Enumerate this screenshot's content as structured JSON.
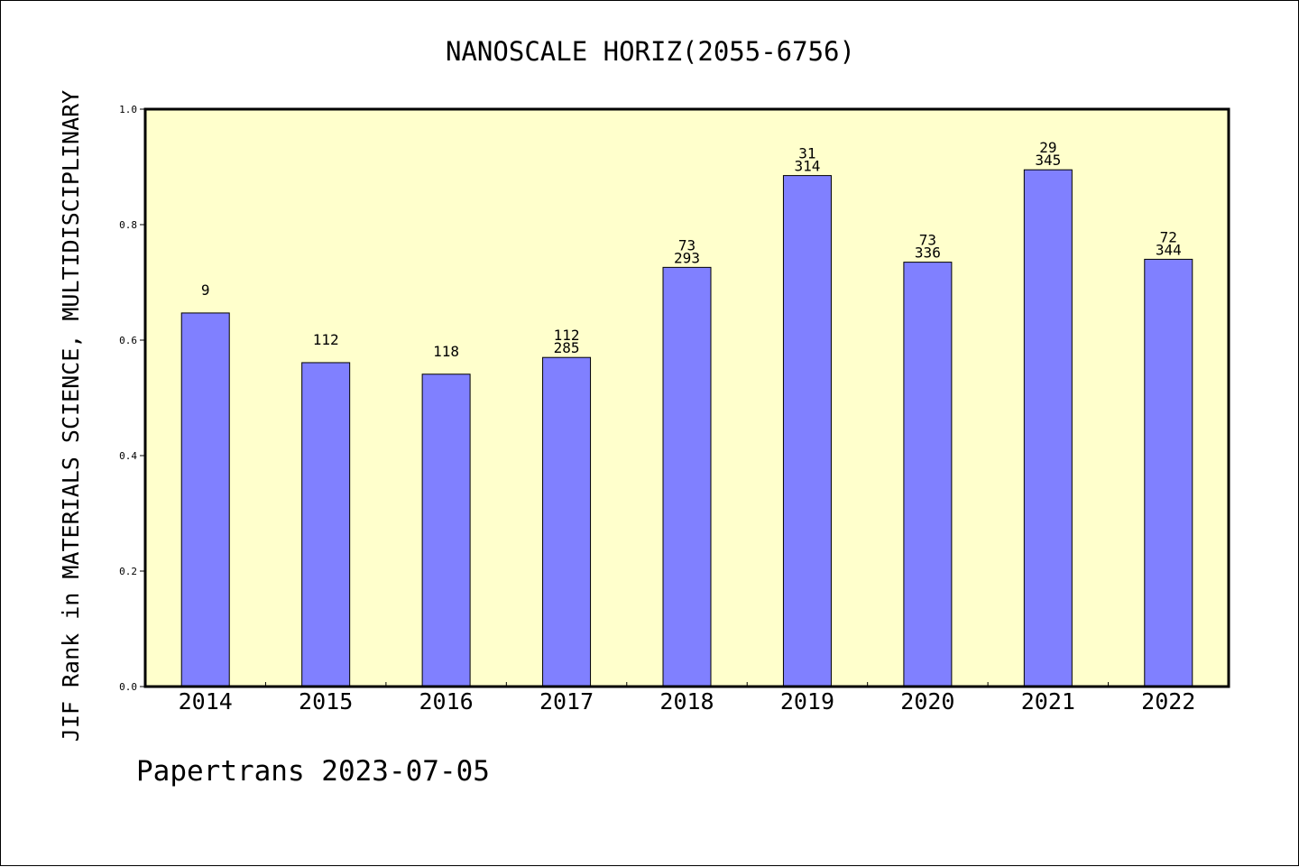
{
  "chart_data": {
    "type": "bar",
    "title": "NANOSCALE HORIZ(2055-6756)",
    "ylabel": "JIF Rank in MATERIALS SCIENCE, MULTIDISCIPLINARY",
    "xlabel": "",
    "ylim": [
      0,
      1.0
    ],
    "yticks": [
      "0.0",
      "0.2",
      "0.4",
      "0.6",
      "0.8",
      "1.0"
    ],
    "categories": [
      "2014",
      "2015",
      "2016",
      "2017",
      "2018",
      "2019",
      "2020",
      "2021",
      "2022"
    ],
    "values": [
      0.647,
      0.561,
      0.541,
      0.57,
      0.726,
      0.885,
      0.735,
      0.895,
      0.74
    ],
    "rank_labels": [
      "9",
      "112",
      "118",
      "112",
      "73",
      "31",
      "73",
      "29",
      "72"
    ],
    "total_labels": [
      "",
      "",
      "",
      "285",
      "293",
      "314",
      "336",
      "345",
      "344"
    ],
    "grid": false,
    "colors": {
      "plot_bg": "#ffffcc",
      "bar": "#8080ff",
      "bar_edge": "#000000"
    }
  },
  "footer": {
    "text": "Papertrans 2023-07-05"
  }
}
